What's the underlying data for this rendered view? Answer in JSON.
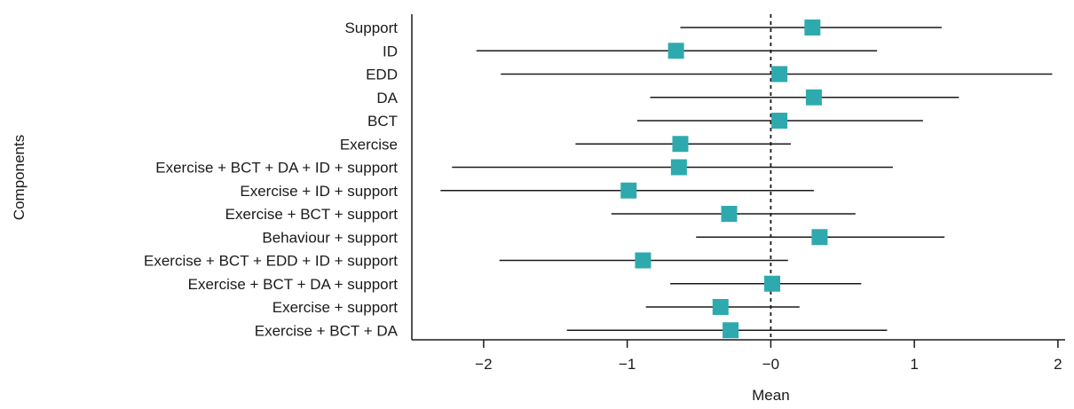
{
  "chart_data": {
    "type": "forest",
    "xlabel": "Mean",
    "ylabel": "Components",
    "xlim": [
      -2.5,
      2.05
    ],
    "xticks": [
      -2,
      -1,
      0,
      1,
      2
    ],
    "xtick_labels": [
      "−2",
      "−1",
      "−0",
      "1",
      "2"
    ],
    "reference_line_x": 0,
    "colors": {
      "marker": "#2eaaaf",
      "line": "#1a1a1a",
      "reference": "#1a1a1a"
    },
    "categories": [
      "Support",
      "ID",
      "EDD",
      "DA",
      "BCT",
      "Exercise",
      "Exercise + BCT + DA + ID + support",
      "Exercise + ID + support",
      "Exercise + BCT + support",
      "Behaviour + support",
      "Exercise + BCT + EDD + ID + support",
      "Exercise + BCT + DA + support",
      "Exercise + support",
      "Exercise + BCT + DA"
    ],
    "means": [
      0.29,
      -0.66,
      0.06,
      0.3,
      0.06,
      -0.63,
      -0.64,
      -0.99,
      -0.29,
      0.34,
      -0.89,
      0.01,
      -0.35,
      -0.28
    ],
    "lower": [
      -0.63,
      -2.05,
      -1.88,
      -0.84,
      -0.93,
      -1.36,
      -2.22,
      -2.3,
      -1.11,
      -0.52,
      -1.89,
      -0.7,
      -0.87,
      -1.42
    ],
    "upper": [
      1.19,
      0.74,
      1.96,
      1.31,
      1.06,
      0.14,
      0.85,
      0.3,
      0.59,
      1.21,
      0.12,
      0.63,
      0.2,
      0.81
    ]
  }
}
